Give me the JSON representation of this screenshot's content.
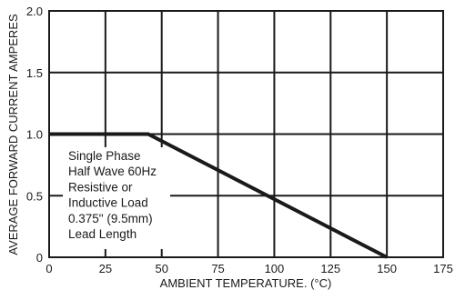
{
  "chart_data": {
    "type": "line",
    "title": "",
    "xlabel": "AMBIENT TEMPERATURE. (°C)",
    "ylabel": "AVERAGE FORWARD CURRENT AMPERES",
    "xlim": [
      0,
      175
    ],
    "ylim": [
      0,
      2.0
    ],
    "x_ticks": [
      0,
      25,
      50,
      75,
      100,
      125,
      150,
      175
    ],
    "x_tick_labels": [
      "0",
      "25",
      "50",
      "75",
      "100",
      "125",
      "150",
      "175"
    ],
    "y_ticks": [
      0,
      0.5,
      1.0,
      1.5,
      2.0
    ],
    "y_tick_labels": [
      "0",
      "0.5",
      "1.0",
      "1.5",
      "2.0"
    ],
    "grid": true,
    "series": [
      {
        "x": [
          0,
          44,
          150
        ],
        "y": [
          1.0,
          1.0,
          0
        ]
      }
    ],
    "annotation": [
      "Single Phase",
      "Half Wave 60Hz",
      "Resistive or",
      "Inductive Load",
      "0.375\" (9.5mm)",
      "Lead Length"
    ],
    "colors": {
      "line": "#1a1a1a",
      "grid": "#1a1a1a",
      "background": "#ffffff"
    }
  }
}
